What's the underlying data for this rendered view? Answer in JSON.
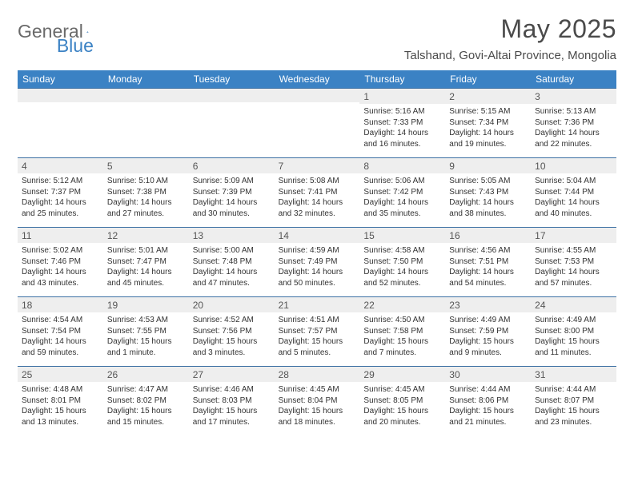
{
  "logo": {
    "part1": "General",
    "part2": "Blue"
  },
  "title": "May 2025",
  "location": "Talshand, Govi-Altai Province, Mongolia",
  "colors": {
    "accent": "#3b82c4",
    "header_text": "#ffffff",
    "rule": "#3b6fa3",
    "daynum_bg": "#eeeeee",
    "body_text": "#333333",
    "title_text": "#4a4a4a"
  },
  "dow": [
    "Sunday",
    "Monday",
    "Tuesday",
    "Wednesday",
    "Thursday",
    "Friday",
    "Saturday"
  ],
  "weeks": [
    [
      {
        "n": "",
        "sr": "",
        "ss": "",
        "dl": ""
      },
      {
        "n": "",
        "sr": "",
        "ss": "",
        "dl": ""
      },
      {
        "n": "",
        "sr": "",
        "ss": "",
        "dl": ""
      },
      {
        "n": "",
        "sr": "",
        "ss": "",
        "dl": ""
      },
      {
        "n": "1",
        "sr": "Sunrise: 5:16 AM",
        "ss": "Sunset: 7:33 PM",
        "dl": "Daylight: 14 hours and 16 minutes."
      },
      {
        "n": "2",
        "sr": "Sunrise: 5:15 AM",
        "ss": "Sunset: 7:34 PM",
        "dl": "Daylight: 14 hours and 19 minutes."
      },
      {
        "n": "3",
        "sr": "Sunrise: 5:13 AM",
        "ss": "Sunset: 7:36 PM",
        "dl": "Daylight: 14 hours and 22 minutes."
      }
    ],
    [
      {
        "n": "4",
        "sr": "Sunrise: 5:12 AM",
        "ss": "Sunset: 7:37 PM",
        "dl": "Daylight: 14 hours and 25 minutes."
      },
      {
        "n": "5",
        "sr": "Sunrise: 5:10 AM",
        "ss": "Sunset: 7:38 PM",
        "dl": "Daylight: 14 hours and 27 minutes."
      },
      {
        "n": "6",
        "sr": "Sunrise: 5:09 AM",
        "ss": "Sunset: 7:39 PM",
        "dl": "Daylight: 14 hours and 30 minutes."
      },
      {
        "n": "7",
        "sr": "Sunrise: 5:08 AM",
        "ss": "Sunset: 7:41 PM",
        "dl": "Daylight: 14 hours and 32 minutes."
      },
      {
        "n": "8",
        "sr": "Sunrise: 5:06 AM",
        "ss": "Sunset: 7:42 PM",
        "dl": "Daylight: 14 hours and 35 minutes."
      },
      {
        "n": "9",
        "sr": "Sunrise: 5:05 AM",
        "ss": "Sunset: 7:43 PM",
        "dl": "Daylight: 14 hours and 38 minutes."
      },
      {
        "n": "10",
        "sr": "Sunrise: 5:04 AM",
        "ss": "Sunset: 7:44 PM",
        "dl": "Daylight: 14 hours and 40 minutes."
      }
    ],
    [
      {
        "n": "11",
        "sr": "Sunrise: 5:02 AM",
        "ss": "Sunset: 7:46 PM",
        "dl": "Daylight: 14 hours and 43 minutes."
      },
      {
        "n": "12",
        "sr": "Sunrise: 5:01 AM",
        "ss": "Sunset: 7:47 PM",
        "dl": "Daylight: 14 hours and 45 minutes."
      },
      {
        "n": "13",
        "sr": "Sunrise: 5:00 AM",
        "ss": "Sunset: 7:48 PM",
        "dl": "Daylight: 14 hours and 47 minutes."
      },
      {
        "n": "14",
        "sr": "Sunrise: 4:59 AM",
        "ss": "Sunset: 7:49 PM",
        "dl": "Daylight: 14 hours and 50 minutes."
      },
      {
        "n": "15",
        "sr": "Sunrise: 4:58 AM",
        "ss": "Sunset: 7:50 PM",
        "dl": "Daylight: 14 hours and 52 minutes."
      },
      {
        "n": "16",
        "sr": "Sunrise: 4:56 AM",
        "ss": "Sunset: 7:51 PM",
        "dl": "Daylight: 14 hours and 54 minutes."
      },
      {
        "n": "17",
        "sr": "Sunrise: 4:55 AM",
        "ss": "Sunset: 7:53 PM",
        "dl": "Daylight: 14 hours and 57 minutes."
      }
    ],
    [
      {
        "n": "18",
        "sr": "Sunrise: 4:54 AM",
        "ss": "Sunset: 7:54 PM",
        "dl": "Daylight: 14 hours and 59 minutes."
      },
      {
        "n": "19",
        "sr": "Sunrise: 4:53 AM",
        "ss": "Sunset: 7:55 PM",
        "dl": "Daylight: 15 hours and 1 minute."
      },
      {
        "n": "20",
        "sr": "Sunrise: 4:52 AM",
        "ss": "Sunset: 7:56 PM",
        "dl": "Daylight: 15 hours and 3 minutes."
      },
      {
        "n": "21",
        "sr": "Sunrise: 4:51 AM",
        "ss": "Sunset: 7:57 PM",
        "dl": "Daylight: 15 hours and 5 minutes."
      },
      {
        "n": "22",
        "sr": "Sunrise: 4:50 AM",
        "ss": "Sunset: 7:58 PM",
        "dl": "Daylight: 15 hours and 7 minutes."
      },
      {
        "n": "23",
        "sr": "Sunrise: 4:49 AM",
        "ss": "Sunset: 7:59 PM",
        "dl": "Daylight: 15 hours and 9 minutes."
      },
      {
        "n": "24",
        "sr": "Sunrise: 4:49 AM",
        "ss": "Sunset: 8:00 PM",
        "dl": "Daylight: 15 hours and 11 minutes."
      }
    ],
    [
      {
        "n": "25",
        "sr": "Sunrise: 4:48 AM",
        "ss": "Sunset: 8:01 PM",
        "dl": "Daylight: 15 hours and 13 minutes."
      },
      {
        "n": "26",
        "sr": "Sunrise: 4:47 AM",
        "ss": "Sunset: 8:02 PM",
        "dl": "Daylight: 15 hours and 15 minutes."
      },
      {
        "n": "27",
        "sr": "Sunrise: 4:46 AM",
        "ss": "Sunset: 8:03 PM",
        "dl": "Daylight: 15 hours and 17 minutes."
      },
      {
        "n": "28",
        "sr": "Sunrise: 4:45 AM",
        "ss": "Sunset: 8:04 PM",
        "dl": "Daylight: 15 hours and 18 minutes."
      },
      {
        "n": "29",
        "sr": "Sunrise: 4:45 AM",
        "ss": "Sunset: 8:05 PM",
        "dl": "Daylight: 15 hours and 20 minutes."
      },
      {
        "n": "30",
        "sr": "Sunrise: 4:44 AM",
        "ss": "Sunset: 8:06 PM",
        "dl": "Daylight: 15 hours and 21 minutes."
      },
      {
        "n": "31",
        "sr": "Sunrise: 4:44 AM",
        "ss": "Sunset: 8:07 PM",
        "dl": "Daylight: 15 hours and 23 minutes."
      }
    ]
  ]
}
